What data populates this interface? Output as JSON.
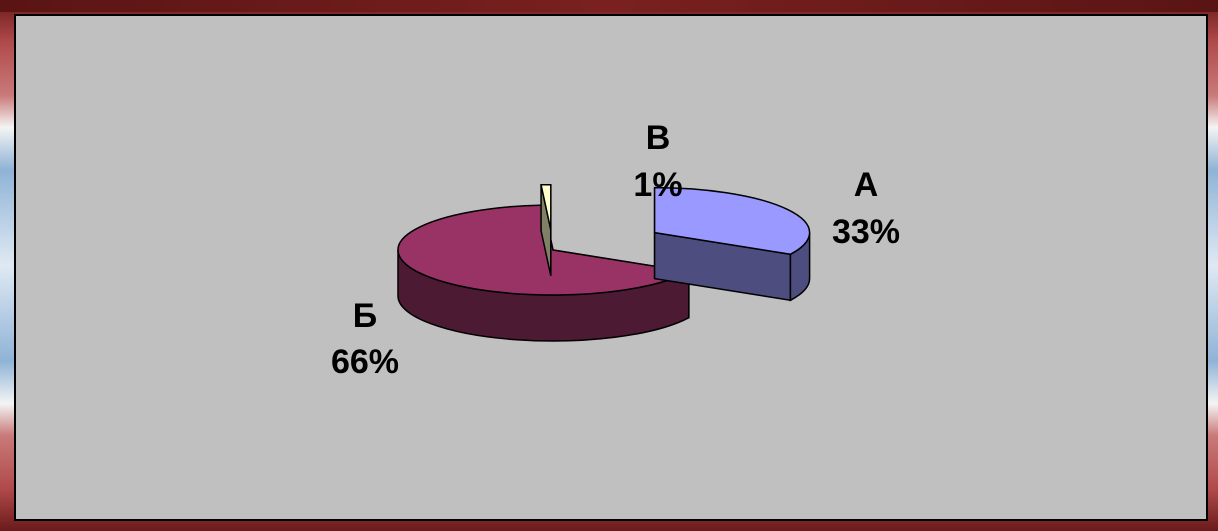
{
  "chart_data": {
    "type": "pie",
    "style": "3d-exploded",
    "slices": [
      {
        "label": "А",
        "value": 33,
        "value_label": "33%",
        "color": "#9999FF",
        "side_color": "#4D4D80"
      },
      {
        "label": "Б",
        "value": 66,
        "value_label": "66%",
        "color": "#993366",
        "side_color": "#4D1A33"
      },
      {
        "label": "В",
        "value": 1,
        "value_label": "1%",
        "color": "#FFFFCC",
        "side_color": "#808066"
      }
    ],
    "background": "#C0C0C0",
    "legend": "none"
  }
}
